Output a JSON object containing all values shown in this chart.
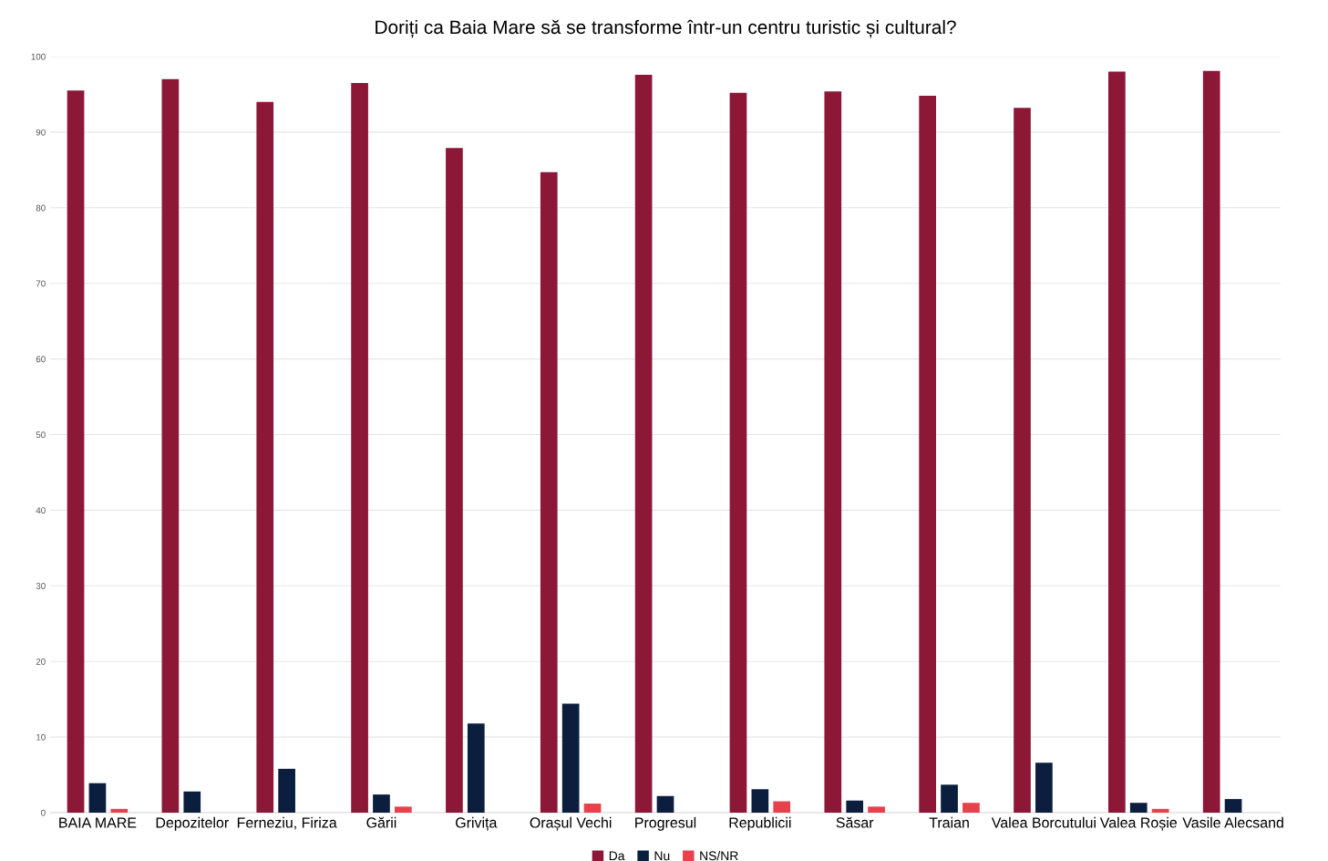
{
  "chart_data": {
    "type": "bar",
    "title": "Doriți ca Baia Mare să se transforme într-un centru turistic și cultural?",
    "categories": [
      "BAIA MARE",
      "Depozitelor",
      "Ferneziu, Firiza",
      "Gării",
      "Grivița",
      "Orașul Vechi",
      "Progresul",
      "Republicii",
      "Săsar",
      "Traian",
      "Valea Borcutului",
      "Valea Roșie",
      "Vasile Alecsand"
    ],
    "series": [
      {
        "name": "Da",
        "color": "#8c1736",
        "values": [
          95.5,
          97.0,
          94.0,
          96.5,
          87.9,
          84.7,
          97.6,
          95.2,
          95.4,
          94.8,
          93.2,
          98.0,
          98.1
        ]
      },
      {
        "name": "Nu",
        "color": "#0c1e3e",
        "values": [
          3.9,
          2.8,
          5.8,
          2.4,
          11.8,
          14.4,
          2.2,
          3.1,
          1.6,
          3.7,
          6.6,
          1.3,
          1.8
        ]
      },
      {
        "name": "NS/NR",
        "color": "#e8414b",
        "values": [
          0.5,
          null,
          null,
          0.8,
          null,
          1.2,
          null,
          1.5,
          0.8,
          1.3,
          null,
          0.5,
          null
        ]
      }
    ],
    "ylim": [
      0,
      100
    ],
    "yticks": [
      0,
      10,
      20,
      30,
      40,
      50,
      60,
      70,
      80,
      90,
      100
    ],
    "grid": "y",
    "legend": "bottom"
  }
}
